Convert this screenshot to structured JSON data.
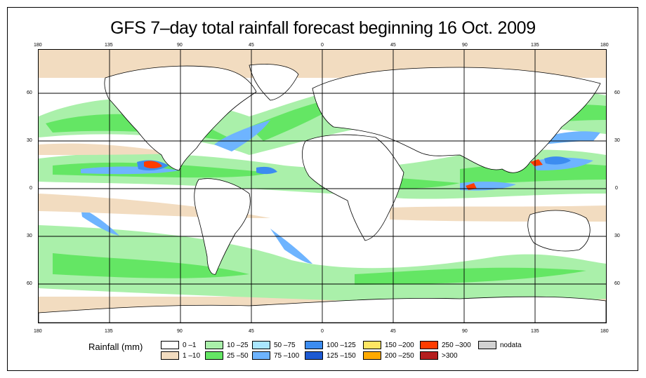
{
  "title": "GFS 7–day total rainfall forecast beginning 16 Oct. 2009",
  "lon_labels": [
    "180",
    "135",
    "90",
    "45",
    "0",
    "45",
    "90",
    "135",
    "180"
  ],
  "lat_labels": [
    "60",
    "30",
    "0",
    "30",
    "60"
  ],
  "legend": {
    "title": "Rainfall (mm)",
    "items": [
      {
        "label": "0 –1",
        "color": "#ffffff"
      },
      {
        "label": "1 –10",
        "color": "#f2dcc0"
      },
      {
        "label": "10 –25",
        "color": "#aaf0aa"
      },
      {
        "label": "25 –50",
        "color": "#64e664"
      },
      {
        "label": "50 –75",
        "color": "#aae6ff"
      },
      {
        "label": "75 –100",
        "color": "#6eb4ff"
      },
      {
        "label": "100 –125",
        "color": "#3c8cf0"
      },
      {
        "label": "125 –150",
        "color": "#1e5ad2"
      },
      {
        "label": "150 –200",
        "color": "#ffe664"
      },
      {
        "label": "200 –250",
        "color": "#ffaa00"
      },
      {
        "label": "250 –300",
        "color": "#ff3c00"
      },
      {
        "label": ">300",
        "color": "#b41e1e"
      },
      {
        "label": "nodata",
        "color": "#d2d2d2"
      }
    ]
  }
}
